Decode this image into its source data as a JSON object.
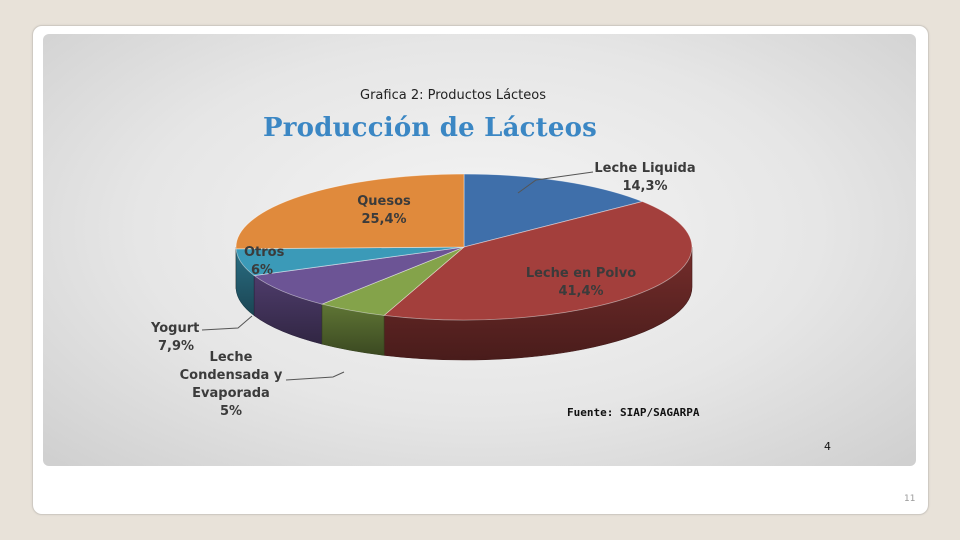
{
  "slide": {
    "caption": "Grafica 2: Productos Lácteos",
    "source": "Fuente: SIAP/SAGARPA",
    "inner_page_number": "4",
    "slide_number": "11"
  },
  "chart_data": {
    "type": "pie",
    "title": "Producción de Lácteos",
    "three_d": true,
    "legend": "none",
    "slices": [
      {
        "name": "Leche Liquida",
        "label": "14,3%",
        "value": 14.3,
        "color": "#3f6faa"
      },
      {
        "name": "Leche en Polvo",
        "label": "41,4%",
        "value": 41.4,
        "color": "#a33f3c"
      },
      {
        "name": "Leche Condensada y Evaporada",
        "label": "5%",
        "value": 5.0,
        "color": "#84a34a"
      },
      {
        "name": "Yogurt",
        "label": "7,9%",
        "value": 7.9,
        "color": "#6c5495"
      },
      {
        "name": "Otros",
        "label": "6%",
        "value": 6.0,
        "color": "#3b9ab8"
      },
      {
        "name": "Quesos",
        "label": "25,4%",
        "value": 25.4,
        "color": "#e08a3c"
      }
    ]
  }
}
